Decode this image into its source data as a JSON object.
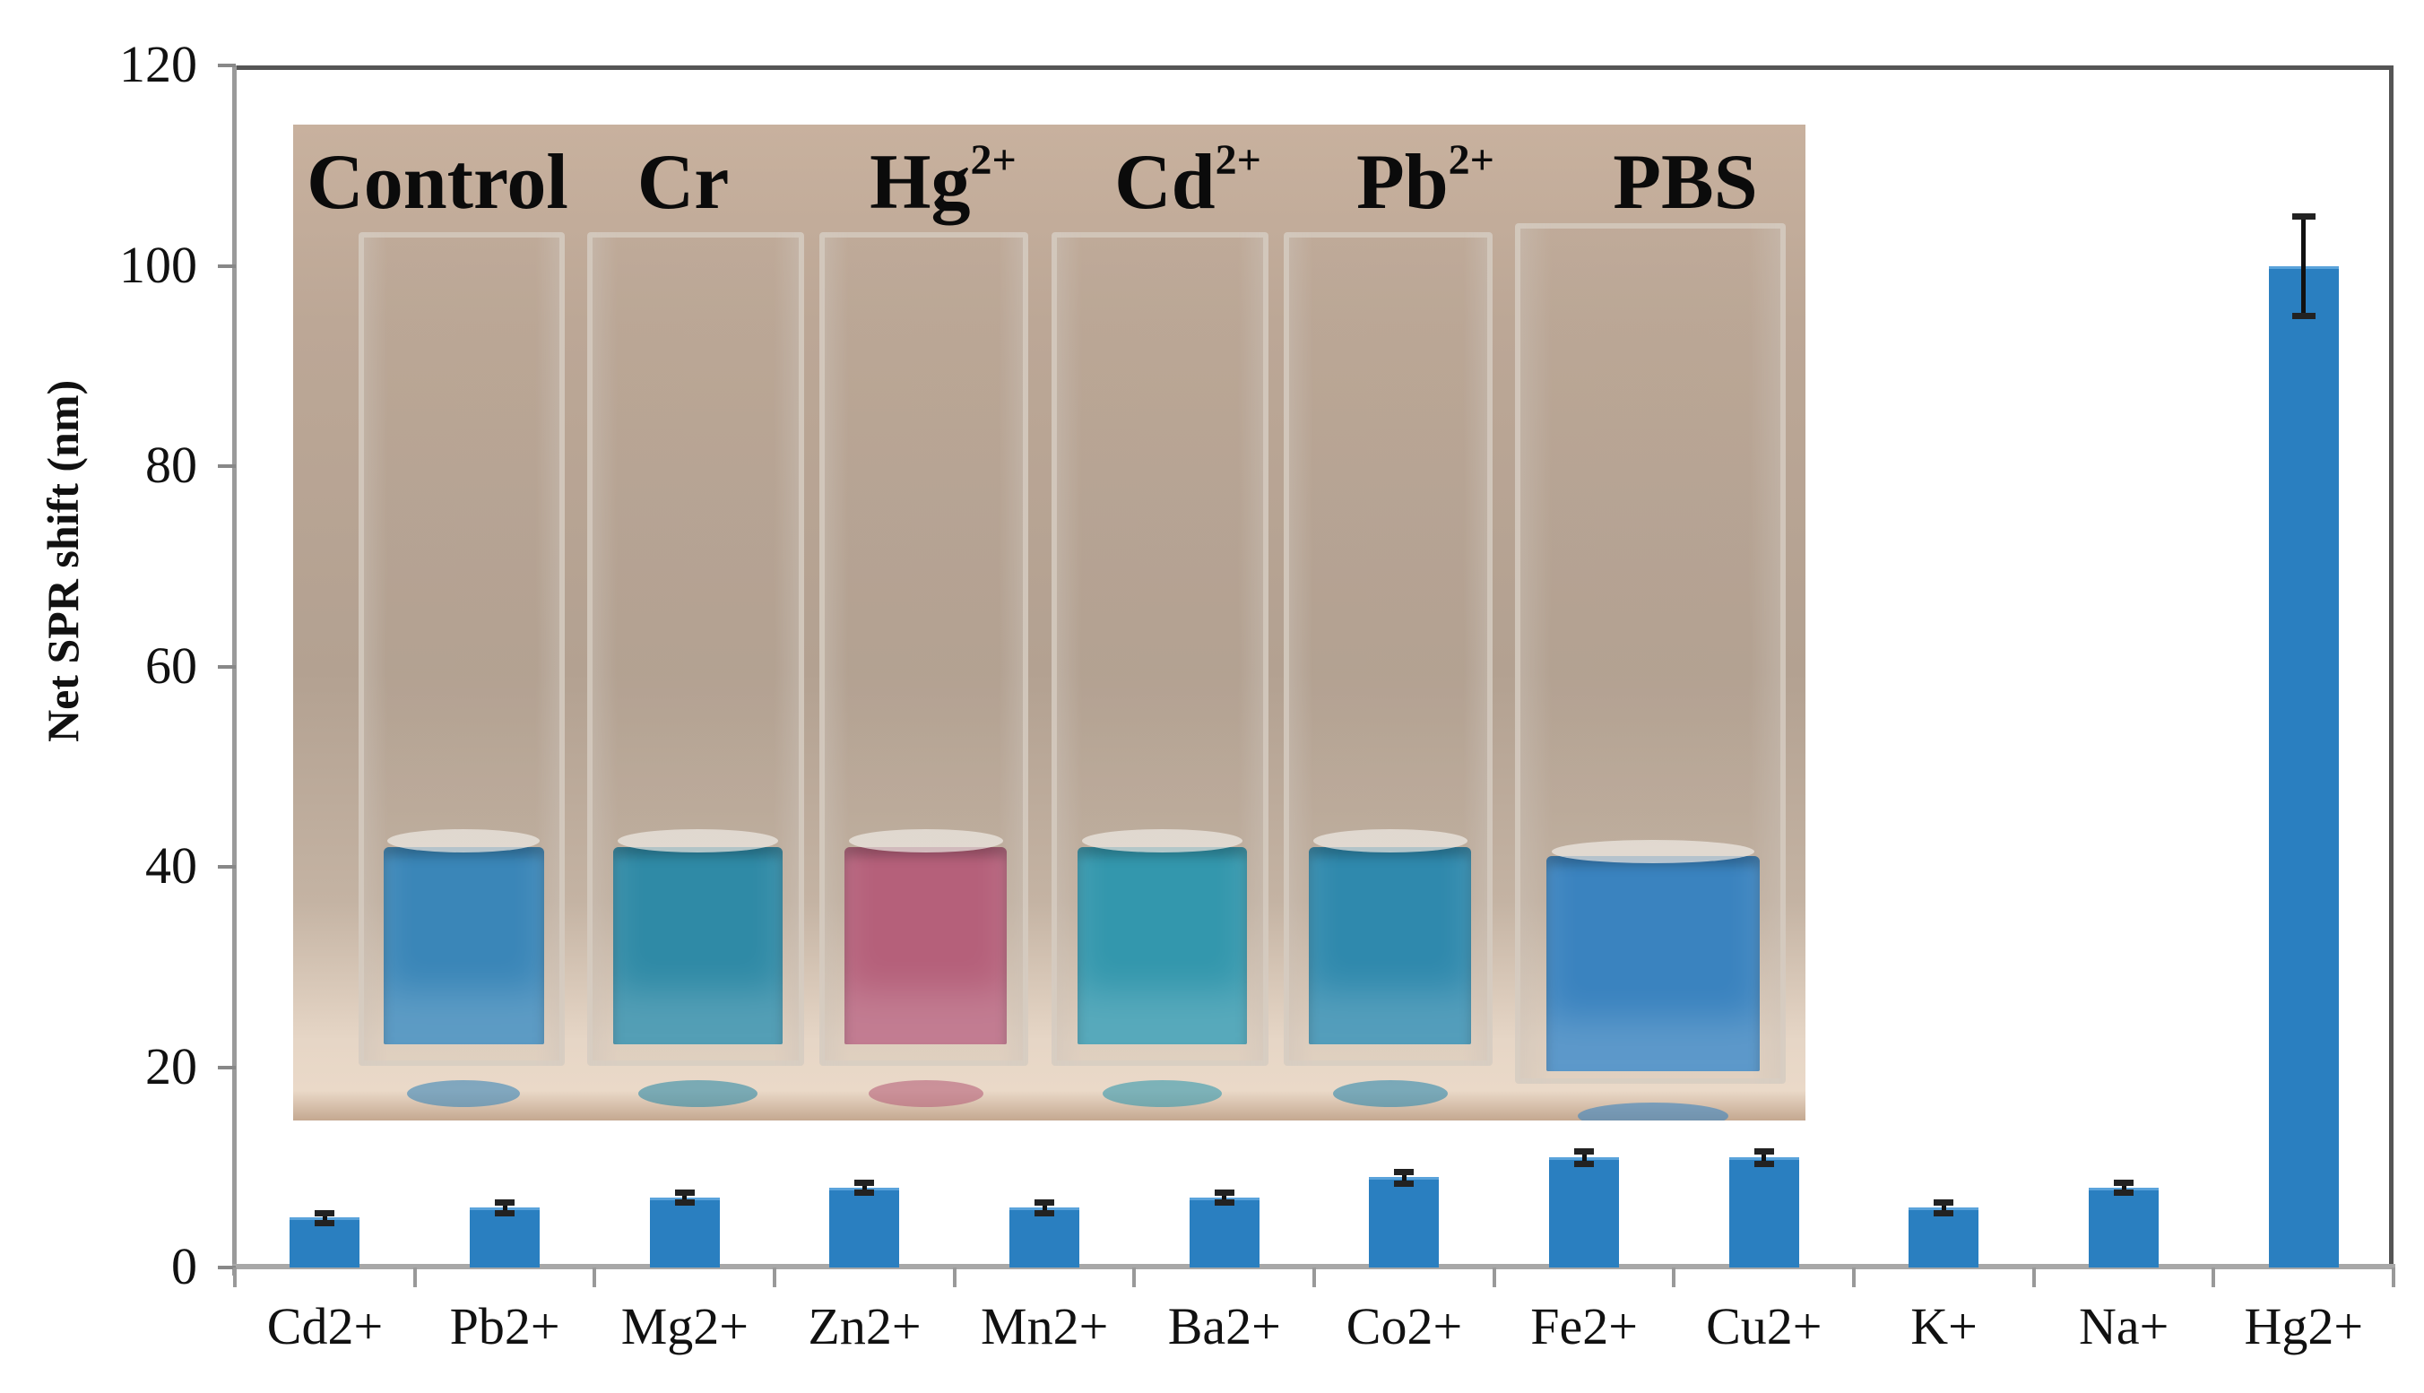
{
  "chart_data": {
    "type": "bar",
    "title": "",
    "xlabel": "",
    "ylabel": "Net SPR shift (nm)",
    "ylim": [
      0,
      120
    ],
    "yticks": [
      0,
      20,
      40,
      60,
      80,
      100,
      120
    ],
    "grid": false,
    "legend": null,
    "categories": [
      "Cd2+",
      "Pb2+",
      "Mg2+",
      "Zn2+",
      "Mn2+",
      "Ba2+",
      "Co2+",
      "Fe2+",
      "Cu2+",
      "K+",
      "Na+",
      "Hg2+"
    ],
    "values": [
      5,
      6,
      7,
      8,
      6,
      7,
      9,
      11,
      11,
      6,
      8,
      100
    ],
    "errors": [
      0.5,
      0.5,
      0.5,
      0.5,
      0.5,
      0.5,
      0.6,
      0.6,
      0.6,
      0.5,
      0.5,
      5
    ],
    "bar_color": "#2a7fc0",
    "inset": {
      "type": "photo",
      "description": "Cuvettes of nanoparticle solution: blue for all except pink for Hg2+",
      "labels": [
        {
          "base": "Control",
          "sup": ""
        },
        {
          "base": "Cr",
          "sup": ""
        },
        {
          "base": "Hg",
          "sup": "2+"
        },
        {
          "base": "Cd",
          "sup": "2+"
        },
        {
          "base": "Pb",
          "sup": "2+"
        },
        {
          "base": "PBS",
          "sup": ""
        }
      ],
      "solution_colors": [
        "#3a86b8",
        "#2f8aa6",
        "#b5607a",
        "#3397ad",
        "#2f89ad",
        "#3a83bf"
      ]
    }
  },
  "axis": {
    "ylabel": "Net SPR shift (nm)",
    "yticks": [
      "0",
      "20",
      "40",
      "60",
      "80",
      "100",
      "120"
    ]
  }
}
